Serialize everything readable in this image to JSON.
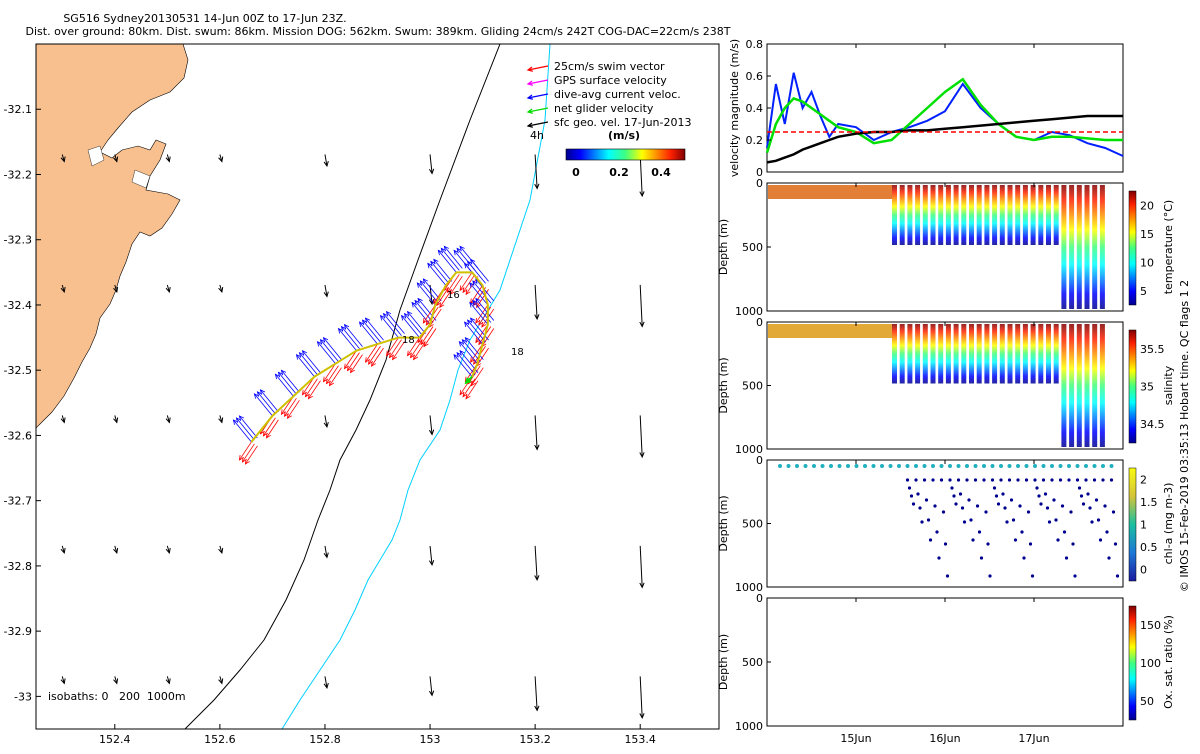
{
  "header": {
    "title_line1": "SG516 Sydney20130531 14-Jun 00Z to 17-Jun 23Z.",
    "title_line2": "Dist. over ground: 80km. Dist. swum: 86km. Mission DOG: 562km. Swum: 389km. Gliding 24cm/s 242T COG-DAC=22cm/s 238T"
  },
  "colors": {
    "land": "#f9c08f",
    "swim_vector": "#ff0000",
    "gps_velocity": "#ff00ff",
    "dac": "#0000ff",
    "net_glider": "#00dd00",
    "geo_velocity": "#000000",
    "isobath_200": "#000000",
    "isobath_1000": "#00d0ff",
    "threshold_line": "#ff0000"
  },
  "map": {
    "legend": [
      {
        "label": "25cm/s swim vector",
        "color": "#ff0000"
      },
      {
        "label": "GPS surface velocity",
        "color": "#ff00ff"
      },
      {
        "label": "dive-avg current veloc.",
        "color": "#0000ff"
      },
      {
        "label": "net glider velocity",
        "color": "#00dd00"
      },
      {
        "label": "sfc geo. vel. 17-Jun-2013",
        "color": "#000000"
      }
    ],
    "legend_time_label": "4h",
    "colorbar_title": "(m/s)",
    "colorbar_ticks": [
      "0",
      "0.2",
      "0.4"
    ],
    "isobath_label": "isobaths: 0   200  1000m",
    "xticks": [
      "152.4",
      "152.6",
      "152.8",
      "153",
      "153.2",
      "153.4"
    ],
    "yticks": [
      "-32.1",
      "-32.2",
      "-32.3",
      "-32.4",
      "-32.5",
      "-32.6",
      "-32.7",
      "-32.8",
      "-32.9",
      "-33"
    ],
    "track_labels": [
      "16",
      "18",
      "18"
    ]
  },
  "panels": {
    "velocity": {
      "ylabel": "velocity magnitude (m/s)",
      "yticks": [
        "0",
        "0.2",
        "0.4",
        "0.6",
        "0.8"
      ]
    },
    "temperature": {
      "ylabel": "Depth (m)",
      "cbar_label": "temperature (°C)",
      "yticks": [
        "0",
        "500",
        "1000"
      ],
      "cbar_ticks": [
        "5",
        "10",
        "15",
        "20"
      ]
    },
    "salinity": {
      "ylabel": "Depth (m)",
      "cbar_label": "salinity",
      "yticks": [
        "0",
        "500",
        "1000"
      ],
      "cbar_ticks": [
        "34.5",
        "35",
        "35.5"
      ]
    },
    "chla": {
      "ylabel": "Depth (m)",
      "cbar_label": "chl-a (mg m-3)",
      "yticks": [
        "0",
        "500",
        "1000"
      ],
      "cbar_ticks": [
        "0",
        "0.5",
        "1",
        "1.5",
        "2"
      ]
    },
    "oxygen": {
      "ylabel": "Depth (m)",
      "cbar_label": "Ox. sat. ratio (%)",
      "yticks": [
        "0",
        "500",
        "1000"
      ],
      "cbar_ticks": [
        "50",
        "100",
        "150"
      ]
    },
    "xticks": [
      "15Jun",
      "16Jun",
      "17Jun"
    ]
  },
  "side_note": "© IMOS 15-Feb-2019 03:35:13 Hobart time. QC flags 1  2",
  "chart_data": [
    {
      "type": "scatter",
      "name": "map",
      "xlim": [
        152.25,
        153.55
      ],
      "ylim": [
        -33.05,
        -32.0
      ],
      "glider_track": [
        [
          152.66,
          -32.61
        ],
        [
          152.7,
          -32.57
        ],
        [
          152.74,
          -32.54
        ],
        [
          152.78,
          -32.51
        ],
        [
          152.82,
          -32.49
        ],
        [
          152.86,
          -32.47
        ],
        [
          152.9,
          -32.46
        ],
        [
          152.94,
          -32.45
        ],
        [
          152.98,
          -32.45
        ],
        [
          153.0,
          -32.43
        ],
        [
          153.01,
          -32.4
        ],
        [
          153.03,
          -32.37
        ],
        [
          153.05,
          -32.35
        ],
        [
          153.08,
          -32.35
        ],
        [
          153.1,
          -32.37
        ],
        [
          153.11,
          -32.4
        ],
        [
          153.11,
          -32.43
        ],
        [
          153.1,
          -32.46
        ],
        [
          153.09,
          -32.49
        ],
        [
          153.08,
          -32.51
        ]
      ],
      "geo_grid_x": [
        152.3,
        152.4,
        152.5,
        152.6,
        152.8,
        153.0,
        153.2,
        153.4
      ],
      "geo_grid_y": [
        -32.2,
        -32.4,
        -32.6,
        -32.8,
        -33.0
      ],
      "geo_speeds": [
        0.02,
        0.02,
        0.02,
        0.02,
        0.05,
        0.1,
        0.2,
        0.25
      ]
    },
    {
      "type": "line",
      "name": "velocity magnitude",
      "x_days": [
        14.0,
        14.1,
        14.2,
        14.3,
        14.4,
        14.5,
        14.6,
        14.7,
        14.8,
        15.0,
        15.2,
        15.4,
        15.6,
        15.8,
        16.0,
        16.2,
        16.4,
        16.6,
        16.8,
        17.0,
        17.2,
        17.4,
        17.6,
        17.8,
        18.0
      ],
      "series": [
        {
          "values": [
            0.15,
            0.55,
            0.3,
            0.62,
            0.4,
            0.5,
            0.35,
            0.22,
            0.3,
            0.28,
            0.2,
            0.25,
            0.28,
            0.32,
            0.38,
            0.55,
            0.4,
            0.3,
            0.22,
            0.2,
            0.25,
            0.23,
            0.18,
            0.15,
            0.1
          ]
        },
        {
          "values": [
            0.12,
            0.3,
            0.4,
            0.46,
            0.44,
            0.4,
            0.36,
            0.32,
            0.28,
            0.25,
            0.18,
            0.2,
            0.3,
            0.4,
            0.5,
            0.58,
            0.42,
            0.3,
            0.22,
            0.2,
            0.22,
            0.22,
            0.21,
            0.2,
            0.2
          ]
        },
        {
          "values": [
            0.06,
            0.07,
            0.09,
            0.11,
            0.14,
            0.16,
            0.18,
            0.2,
            0.22,
            0.24,
            0.25,
            0.25,
            0.26,
            0.26,
            0.27,
            0.28,
            0.29,
            0.3,
            0.31,
            0.32,
            0.33,
            0.34,
            0.35,
            0.35,
            0.35
          ]
        },
        {
          "values": [
            0.25,
            0.25,
            0.25,
            0.25,
            0.25,
            0.25,
            0.25,
            0.25,
            0.25,
            0.25,
            0.25,
            0.25,
            0.25,
            0.25,
            0.25,
            0.25,
            0.25,
            0.25,
            0.25,
            0.25,
            0.25,
            0.25,
            0.25,
            0.25,
            0.25
          ]
        }
      ],
      "xlim": [
        14.0,
        18.0
      ],
      "ylim": [
        0,
        0.8
      ]
    }
  ]
}
